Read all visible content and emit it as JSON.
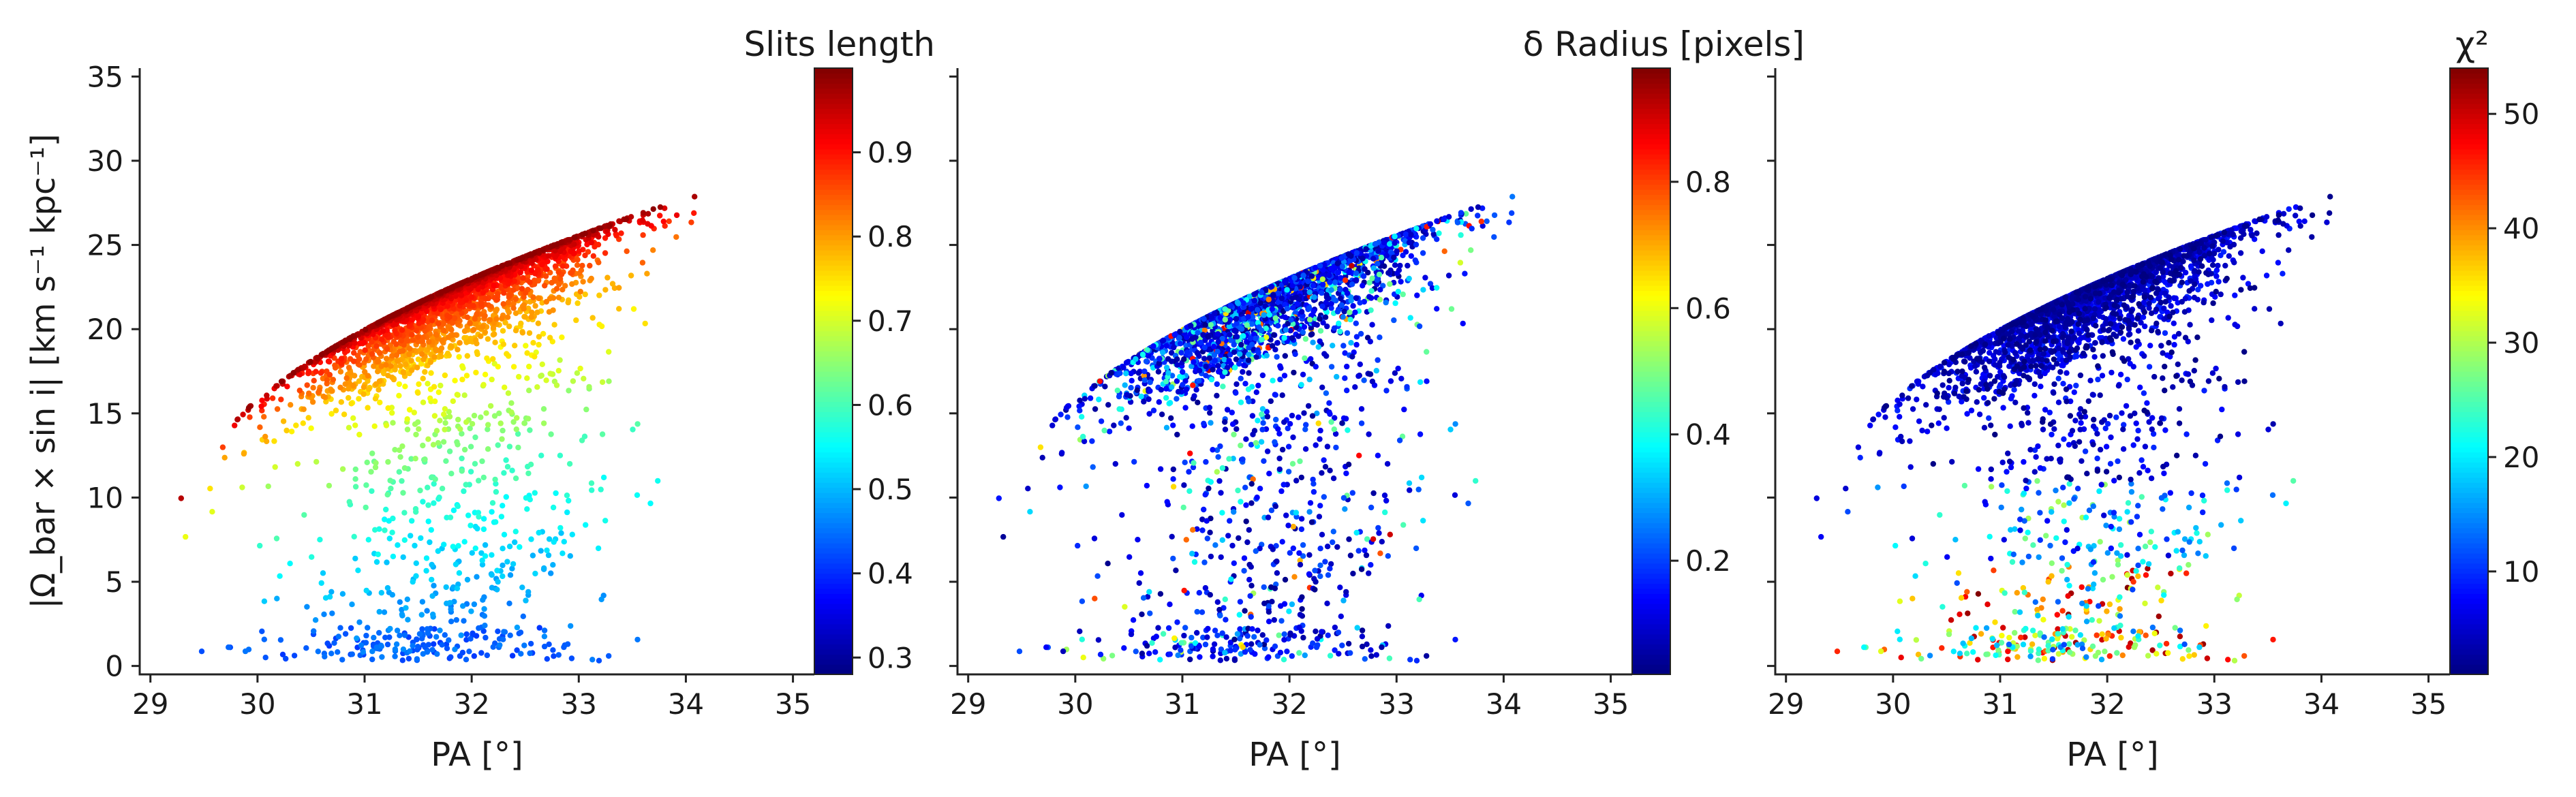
{
  "chart_data": [
    {
      "type": "scatter",
      "panel": "left",
      "xlabel": "PA [°]",
      "ylabel": "|Ω_bar × sin i|  [km s⁻¹ kpc⁻¹]",
      "xlim": [
        28.9,
        35.2
      ],
      "ylim": [
        -0.5,
        35.5
      ],
      "xticks": [
        "29",
        "30",
        "31",
        "32",
        "33",
        "34",
        "35"
      ],
      "yticks": [
        "0",
        "5",
        "10",
        "15",
        "20",
        "25",
        "30",
        "35"
      ],
      "colorbar": {
        "title": "Slits length",
        "colormap": "jet",
        "range": [
          0.28,
          1.0
        ],
        "ticks": [
          "0.3",
          "0.4",
          "0.5",
          "0.6",
          "0.7",
          "0.8",
          "0.9"
        ]
      },
      "color_mode": "slit"
    },
    {
      "type": "scatter",
      "panel": "middle",
      "xlabel": "PA [°]",
      "xlim": [
        28.9,
        35.2
      ],
      "ylim": [
        -0.5,
        35.5
      ],
      "xticks": [
        "29",
        "30",
        "31",
        "32",
        "33",
        "34",
        "35"
      ],
      "colorbar": {
        "title": "δ Radius [pixels]",
        "colormap": "jet",
        "range": [
          0.02,
          0.98
        ],
        "ticks": [
          "0.2",
          "0.4",
          "0.6",
          "0.8"
        ]
      },
      "color_mode": "radius"
    },
    {
      "type": "scatter",
      "panel": "right",
      "xlabel": "PA [°]",
      "xlim": [
        28.9,
        35.2
      ],
      "ylim": [
        -0.5,
        35.5
      ],
      "xticks": [
        "29",
        "30",
        "31",
        "32",
        "33",
        "34",
        "35"
      ],
      "colorbar": {
        "title": "χ²",
        "colormap": "jet",
        "range": [
          1,
          54
        ],
        "ticks": [
          "10",
          "20",
          "30",
          "40",
          "50"
        ]
      },
      "color_mode": "chi2"
    }
  ]
}
